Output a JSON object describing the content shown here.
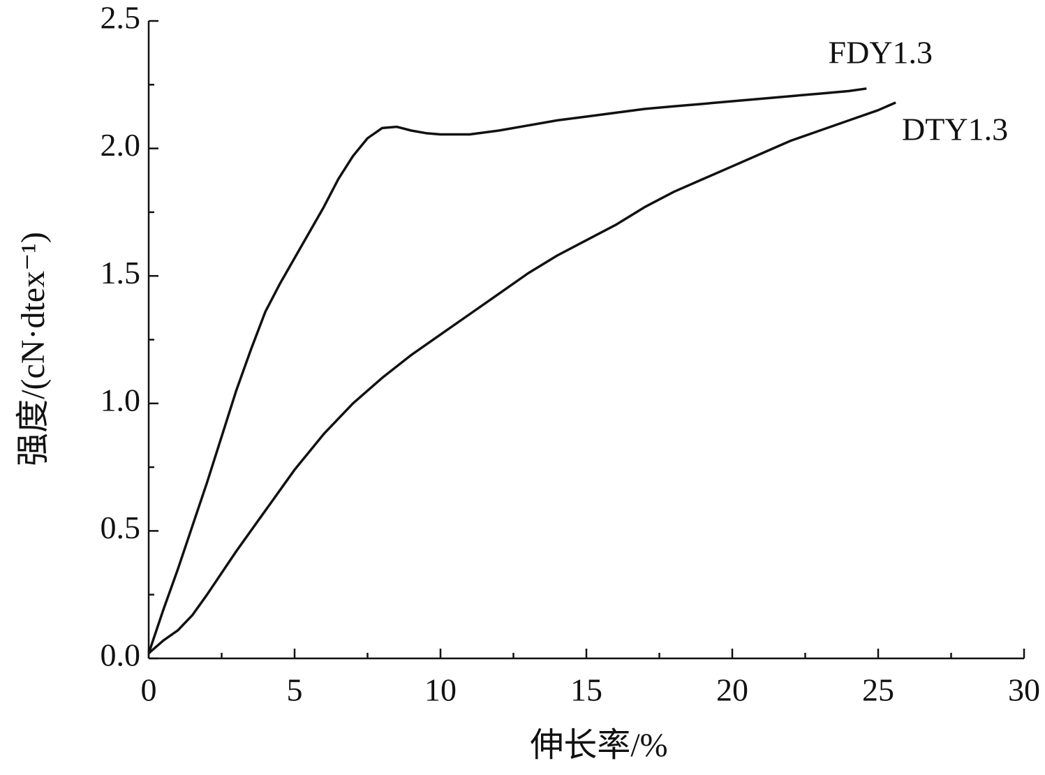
{
  "chart_data": {
    "type": "line",
    "x_label": "伸长率/%",
    "y_label": "强度/(cN·dtex⁻¹)",
    "xlim": [
      0,
      30
    ],
    "xticks": [
      0,
      5,
      10,
      15,
      20,
      25,
      30
    ],
    "xminorticks": [
      2.5,
      7.5,
      12.5,
      17.5,
      22.5,
      27.5
    ],
    "ylim": [
      0,
      2.5
    ],
    "yticks": [
      {
        "value": 0,
        "label": "0.0"
      },
      0.5,
      {
        "value": 1,
        "label": "1.0"
      },
      1.5,
      {
        "value": 2,
        "label": "2.0"
      },
      2.5
    ],
    "yminorticks": [
      0.25,
      0.75,
      1.25,
      1.75,
      2.25
    ],
    "series": [
      {
        "name": "FDY1.3",
        "color": "#111111",
        "x": [
          0,
          0.5,
          1,
          1.5,
          2,
          2.5,
          3,
          3.5,
          4,
          4.5,
          5,
          5.5,
          6,
          6.5,
          7,
          7.5,
          8,
          8.5,
          9,
          9.5,
          10,
          11,
          12,
          13,
          14,
          15,
          16,
          17,
          18,
          19,
          20,
          21,
          22,
          23,
          24,
          24.6
        ],
        "values": [
          0.02,
          0.19,
          0.35,
          0.52,
          0.69,
          0.87,
          1.05,
          1.21,
          1.36,
          1.47,
          1.57,
          1.67,
          1.77,
          1.88,
          1.97,
          2.04,
          2.08,
          2.085,
          2.07,
          2.06,
          2.055,
          2.055,
          2.07,
          2.09,
          2.11,
          2.125,
          2.14,
          2.155,
          2.165,
          2.175,
          2.185,
          2.195,
          2.205,
          2.215,
          2.225,
          2.235
        ]
      },
      {
        "name": "DTY1.3",
        "color": "#111111",
        "x": [
          0,
          0.5,
          1,
          1.5,
          2,
          3,
          4,
          5,
          6,
          7,
          8,
          9,
          10,
          11,
          12,
          13,
          14,
          15,
          16,
          17,
          18,
          19,
          20,
          21,
          22,
          23,
          24,
          25,
          25.6
        ],
        "values": [
          0.02,
          0.07,
          0.11,
          0.17,
          0.25,
          0.42,
          0.58,
          0.74,
          0.88,
          1.0,
          1.1,
          1.19,
          1.27,
          1.35,
          1.43,
          1.51,
          1.58,
          1.64,
          1.7,
          1.77,
          1.83,
          1.88,
          1.93,
          1.98,
          2.03,
          2.07,
          2.11,
          2.15,
          2.18
        ]
      }
    ]
  }
}
